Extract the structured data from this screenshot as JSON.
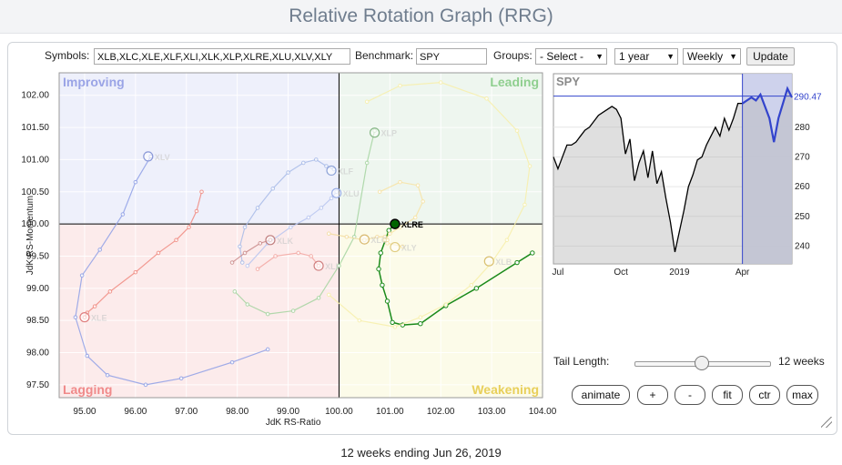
{
  "page": {
    "title": "Relative Rotation Graph (RRG)",
    "footer": "12 weeks ending Jun 26, 2019"
  },
  "controls": {
    "symbols_label": "Symbols:",
    "symbols_value": "XLB,XLC,XLE,XLF,XLI,XLK,XLP,XLRE,XLU,XLV,XLY",
    "benchmark_label": "Benchmark:",
    "benchmark_value": "SPY",
    "groups_label": "Groups:",
    "groups_value": "- Select -",
    "period_value": "1 year",
    "frequency_value": "Weekly",
    "update_label": "Update",
    "tail_label": "Tail Length:",
    "tail_value": "12 weeks",
    "tail_fraction": 0.5,
    "buttons": [
      "animate",
      "+",
      "-",
      "fit",
      "ctr",
      "max"
    ]
  },
  "colors": {
    "highlight": "#008000",
    "improving": "#eef0fb",
    "leading": "#eef6ef",
    "lagging": "#fcebeb",
    "weakening": "#fcfbe9",
    "benchmark_line": "#3344cc"
  },
  "chart_data": [
    {
      "type": "scatter",
      "title": "",
      "xlabel": "JdK RS-Ratio",
      "ylabel": "JdK RS-Momentum",
      "xlim": [
        94.5,
        104.0
      ],
      "ylim": [
        97.3,
        102.35
      ],
      "xticks": [
        "95.00",
        "96.00",
        "97.00",
        "98.00",
        "99.00",
        "100.00",
        "101.00",
        "102.00",
        "103.00",
        "104.00"
      ],
      "yticks": [
        "97.50",
        "98.00",
        "98.50",
        "99.00",
        "99.50",
        "100.00",
        "100.50",
        "101.00",
        "101.50",
        "102.00"
      ],
      "quadrants": {
        "top_left": "Improving",
        "top_right": "Leading",
        "bottom_left": "Lagging",
        "bottom_right": "Weakening"
      },
      "highlighted": "XLRE",
      "series": [
        {
          "name": "XLRE",
          "color": "#1a8a1a",
          "x": [
            103.8,
            103.5,
            102.7,
            102.1,
            101.6,
            101.25,
            101.05,
            100.95,
            100.85,
            100.78,
            100.82,
            100.98,
            101.1
          ],
          "y": [
            99.55,
            99.4,
            99.0,
            98.73,
            98.45,
            98.43,
            98.47,
            98.8,
            99.05,
            99.3,
            99.55,
            99.9,
            100.0
          ]
        },
        {
          "name": "XLV",
          "color": "#8fa0e6",
          "x": [
            98.6,
            97.9,
            96.9,
            96.2,
            95.45,
            95.05,
            94.82,
            94.95,
            95.3,
            95.75,
            96.0,
            96.3
          ],
          "y": [
            98.05,
            97.85,
            97.6,
            97.5,
            97.65,
            97.95,
            98.55,
            99.2,
            99.6,
            100.15,
            100.65,
            101.05
          ]
        },
        {
          "name": "XLE",
          "color": "#f08a80",
          "x": [
            97.3,
            97.2,
            97.05,
            96.8,
            96.45,
            96.0,
            95.5,
            95.2,
            95.05,
            95.0
          ],
          "y": [
            100.5,
            100.2,
            99.95,
            99.75,
            99.55,
            99.25,
            98.95,
            98.72,
            98.62,
            98.55
          ]
        },
        {
          "name": "XLF",
          "color": "#a8bbe8",
          "x": [
            98.1,
            98.05,
            98.15,
            98.4,
            98.7,
            99.0,
            99.3,
            99.55,
            99.75,
            99.9
          ],
          "y": [
            99.4,
            99.65,
            99.95,
            100.25,
            100.55,
            100.8,
            100.95,
            101.0,
            100.9,
            100.85
          ]
        },
        {
          "name": "XLP",
          "color": "#a5d4a0",
          "x": [
            97.95,
            98.2,
            98.6,
            99.1,
            99.6,
            100.0,
            100.3,
            100.55,
            100.7
          ],
          "y": [
            98.95,
            98.75,
            98.6,
            98.65,
            98.85,
            99.35,
            99.8,
            100.95,
            101.45
          ]
        },
        {
          "name": "XLU",
          "color": "#b9c6f0",
          "x": [
            98.2,
            98.6,
            99.05,
            99.4,
            99.65,
            99.85,
            99.95
          ],
          "y": [
            99.35,
            99.7,
            99.95,
            100.1,
            100.25,
            100.4,
            100.5
          ]
        },
        {
          "name": "XLK",
          "color": "#c98a8a",
          "x": [
            97.9,
            98.15,
            98.45,
            98.65
          ],
          "y": [
            99.4,
            99.55,
            99.7,
            99.75
          ]
        },
        {
          "name": "XLI",
          "color": "#f3a7a2",
          "x": [
            98.4,
            98.75,
            99.2,
            99.45,
            99.6
          ],
          "y": [
            99.3,
            99.5,
            99.55,
            99.5,
            99.35
          ]
        },
        {
          "name": "XLC",
          "color": "#f3dca0",
          "x": [
            99.8,
            100.15,
            100.5,
            100.75,
            100.9,
            100.95
          ],
          "y": [
            99.85,
            99.8,
            99.75,
            99.8,
            99.8,
            99.75
          ]
        },
        {
          "name": "XLB",
          "color": "#f7efaa",
          "x": [
            99.8,
            100.4,
            101.1,
            101.6,
            102.1,
            102.6,
            103.0,
            103.3,
            103.65,
            103.75,
            103.5,
            102.9,
            102.0,
            101.2,
            100.55
          ],
          "y": [
            98.9,
            98.5,
            98.4,
            98.55,
            98.75,
            99.05,
            99.4,
            99.75,
            100.3,
            100.9,
            101.45,
            101.95,
            102.2,
            102.15,
            101.9
          ]
        },
        {
          "name": "XLY",
          "color": "#f7e3a4",
          "x": [
            100.8,
            101.2,
            101.55,
            101.65,
            101.5,
            101.2,
            101.0,
            100.9,
            100.95,
            101.25
          ],
          "y": [
            100.5,
            100.65,
            100.6,
            100.35,
            100.1,
            99.95,
            99.85,
            99.75,
            99.7,
            99.65
          ]
        }
      ],
      "markers": [
        {
          "label": "XLV",
          "x": 96.25,
          "y": 101.05,
          "color": "#8a99d8"
        },
        {
          "label": "XLF",
          "x": 99.85,
          "y": 100.83,
          "color": "#8ea3d8"
        },
        {
          "label": "XLU",
          "x": 99.95,
          "y": 100.48,
          "color": "#9aaee6"
        },
        {
          "label": "XLP",
          "x": 100.7,
          "y": 101.42,
          "color": "#88b888"
        },
        {
          "label": "XLE",
          "x": 95.0,
          "y": 98.55,
          "color": "#e08080"
        },
        {
          "label": "XLK",
          "x": 98.65,
          "y": 99.75,
          "color": "#c08080"
        },
        {
          "label": "XLI",
          "x": 99.6,
          "y": 99.35,
          "color": "#d08080"
        },
        {
          "label": "XLC",
          "x": 100.5,
          "y": 99.76,
          "color": "#d9b970"
        },
        {
          "label": "XLY",
          "x": 101.1,
          "y": 99.64,
          "color": "#e0cc80"
        },
        {
          "label": "XLB",
          "x": 102.95,
          "y": 99.42,
          "color": "#d9c070"
        },
        {
          "label": "XLRE",
          "x": 101.1,
          "y": 100.0,
          "color": "#006400"
        }
      ]
    },
    {
      "type": "line",
      "title": "SPY",
      "series_name": "SPY",
      "last_value": "290.47",
      "yticks": [
        "240",
        "250",
        "260",
        "270",
        "280"
      ],
      "ylim": [
        234,
        298
      ],
      "xlabels": [
        "Jul",
        "Oct",
        "2019",
        "Apr"
      ],
      "x_positions_weeks": [
        1,
        15,
        28,
        42
      ],
      "highlight_from_week": 42,
      "values": [
        270,
        266,
        270,
        274,
        274,
        275,
        277,
        279,
        280,
        282,
        284,
        285,
        286,
        287,
        286,
        283,
        271,
        276,
        262,
        268,
        272,
        263,
        272,
        261,
        265,
        256,
        248,
        238,
        245,
        252,
        260,
        264,
        269,
        270,
        274,
        277,
        280,
        277,
        283,
        279,
        283,
        288,
        288,
        289,
        290,
        289,
        291,
        287,
        283,
        275,
        283,
        288,
        293,
        290
      ]
    }
  ]
}
